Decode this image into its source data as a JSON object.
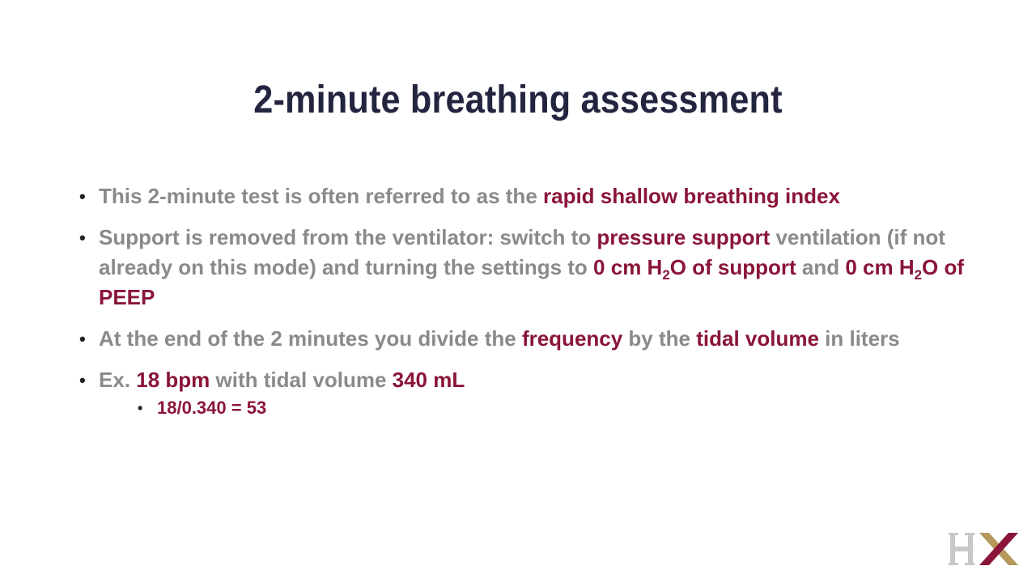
{
  "slide": {
    "title": "2-minute breathing assessment"
  },
  "bullets": [
    {
      "parts": [
        "This 2-minute test is often referred to as the ",
        "rapid shallow breathing index"
      ]
    },
    {
      "parts": [
        "Support is removed from the ventilator: switch to ",
        "pressure support",
        " ventilation (if not already on this mode)  and turning the settings to ",
        "0 cm H",
        "2",
        "O of support",
        " and ",
        "0 cm H",
        "2",
        "O of PEEP"
      ]
    },
    {
      "parts": [
        "At the end of the 2 minutes you divide the ",
        "frequency",
        " by the ",
        "tidal volume",
        " in liters"
      ]
    },
    {
      "parts": [
        "Ex. ",
        "18 bpm",
        " with tidal volume ",
        "340 mL"
      ],
      "sub": [
        "18/0.340 = 53"
      ]
    }
  ],
  "logo": {
    "text": "HX",
    "colors": {
      "h": "#c8c8c8",
      "x_gold": "#b5985a",
      "x_red": "#8a1538"
    }
  },
  "colors": {
    "title": "#23243f",
    "body_text": "#8a8a8a",
    "highlight": "#8a1538"
  }
}
